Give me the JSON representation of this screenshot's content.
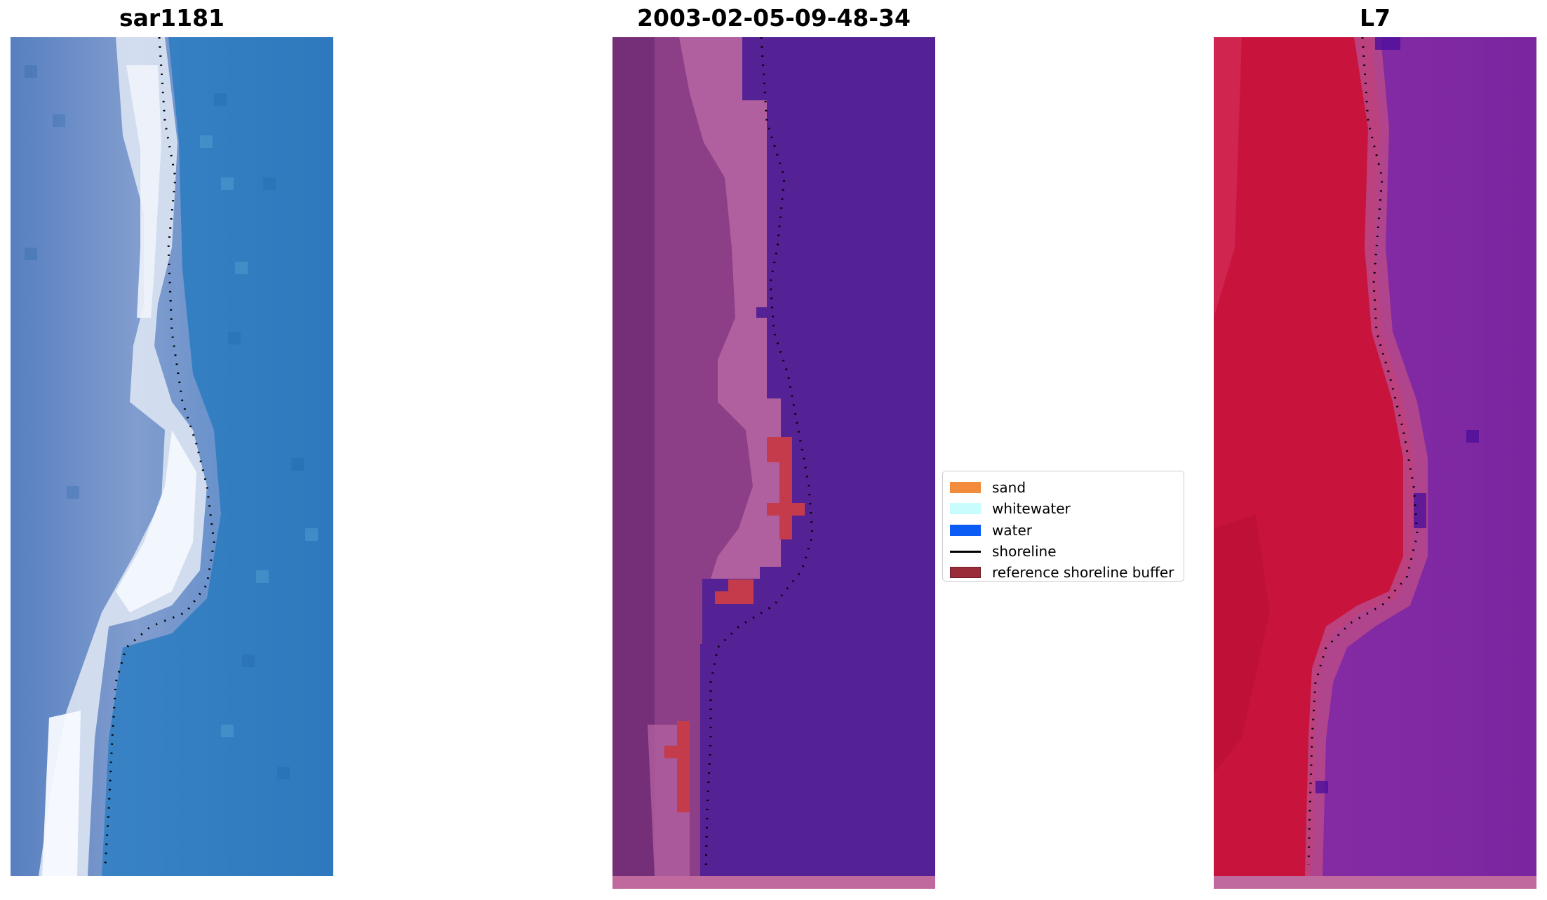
{
  "panels": {
    "left": {
      "title": "sar1181"
    },
    "middle": {
      "title": "2003-02-05-09-48-34"
    },
    "right": {
      "title": "L7"
    }
  },
  "legend": {
    "items": [
      {
        "label": "sand",
        "type": "patch",
        "color": "#f28b3c"
      },
      {
        "label": "whitewater",
        "type": "patch",
        "color": "#c9fdfd"
      },
      {
        "label": "water",
        "type": "patch",
        "color": "#0a5cf5"
      },
      {
        "label": "shoreline",
        "type": "line",
        "color": "#000000"
      },
      {
        "label": "reference shoreline buffer",
        "type": "patch",
        "color": "#9a2c3a"
      }
    ]
  },
  "colors": {
    "rgb_water": "#2f7cc0",
    "rgb_sand": "#d8e2f2",
    "classified_water": "#542294",
    "classified_land": "#9a4f8e",
    "buffer": "#c43c4c",
    "swir_water": "#7d29a0",
    "swir_land": "#c8143c"
  }
}
